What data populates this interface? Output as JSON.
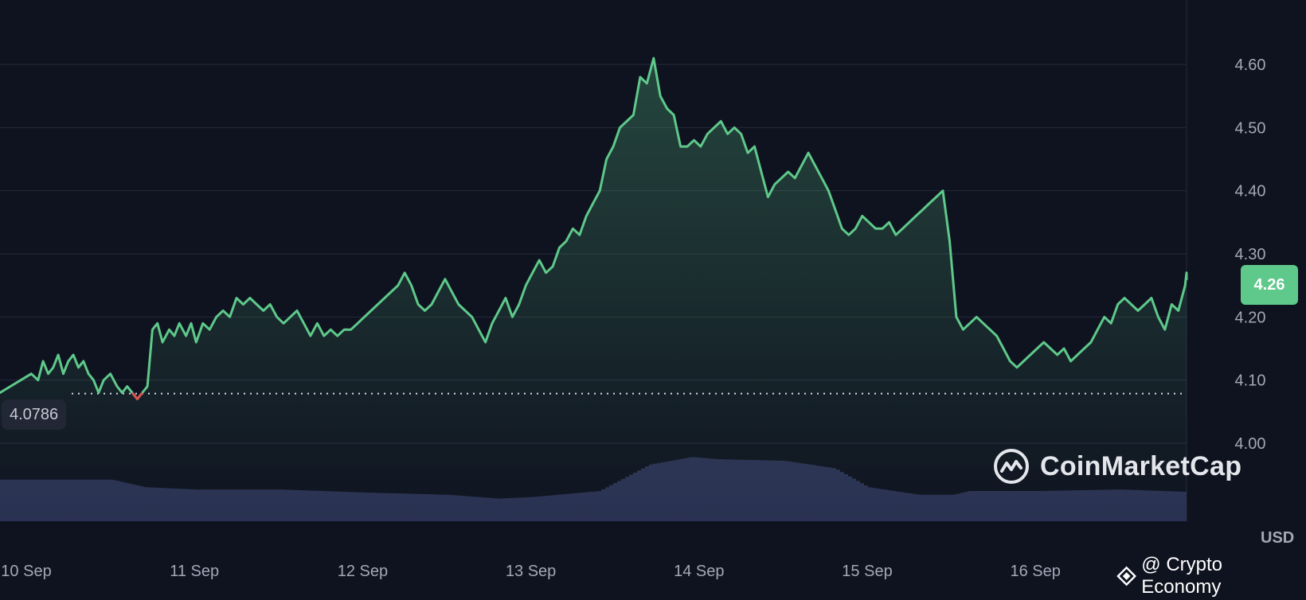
{
  "chart_data": {
    "type": "area",
    "x_ticks": [
      "10 Sep",
      "11 Sep",
      "12 Sep",
      "13 Sep",
      "14 Sep",
      "15 Sep",
      "16 Sep"
    ],
    "y_ticks": [
      "4.00",
      "4.10",
      "4.20",
      "4.30",
      "4.40",
      "4.50",
      "4.60"
    ],
    "ylim": [
      4.0,
      4.66
    ],
    "xlim": [
      0,
      7.0
    ],
    "currency": "USD",
    "reference_value": "4.0786",
    "last_value": "4.26",
    "grid": true,
    "line_color": "#5ec98a",
    "below_reference_color": "#d9534f",
    "series": [
      {
        "values": [
          [
            0.0,
            4.08
          ],
          [
            0.03,
            4.11
          ],
          [
            0.07,
            4.1
          ],
          [
            0.1,
            4.13
          ],
          [
            0.13,
            4.11
          ],
          [
            0.16,
            4.12
          ],
          [
            0.19,
            4.14
          ],
          [
            0.22,
            4.11
          ],
          [
            0.25,
            4.13
          ],
          [
            0.28,
            4.14
          ],
          [
            0.31,
            4.12
          ],
          [
            0.34,
            4.13
          ],
          [
            0.37,
            4.11
          ],
          [
            0.4,
            4.1
          ],
          [
            0.43,
            4.08
          ],
          [
            0.46,
            4.1
          ],
          [
            0.5,
            4.11
          ],
          [
            0.54,
            4.09
          ],
          [
            0.57,
            4.08
          ],
          [
            0.6,
            4.09
          ],
          [
            0.63,
            4.08
          ],
          [
            0.66,
            4.07
          ],
          [
            0.69,
            4.08
          ],
          [
            0.72,
            4.09
          ],
          [
            0.75,
            4.18
          ],
          [
            0.78,
            4.19
          ],
          [
            0.81,
            4.16
          ],
          [
            0.85,
            4.18
          ],
          [
            0.88,
            4.17
          ],
          [
            0.91,
            4.19
          ],
          [
            0.95,
            4.17
          ],
          [
            0.98,
            4.19
          ],
          [
            1.01,
            4.16
          ],
          [
            1.05,
            4.19
          ],
          [
            1.09,
            4.18
          ],
          [
            1.13,
            4.2
          ],
          [
            1.17,
            4.21
          ],
          [
            1.21,
            4.2
          ],
          [
            1.25,
            4.23
          ],
          [
            1.29,
            4.22
          ],
          [
            1.33,
            4.23
          ],
          [
            1.37,
            4.22
          ],
          [
            1.41,
            4.21
          ],
          [
            1.45,
            4.22
          ],
          [
            1.49,
            4.2
          ],
          [
            1.53,
            4.19
          ],
          [
            1.57,
            4.2
          ],
          [
            1.61,
            4.21
          ],
          [
            1.65,
            4.19
          ],
          [
            1.69,
            4.17
          ],
          [
            1.73,
            4.19
          ],
          [
            1.77,
            4.17
          ],
          [
            1.81,
            4.18
          ],
          [
            1.85,
            4.17
          ],
          [
            1.89,
            4.18
          ],
          [
            1.93,
            4.18
          ],
          [
            1.97,
            4.19
          ],
          [
            2.01,
            4.2
          ],
          [
            2.05,
            4.21
          ],
          [
            2.09,
            4.22
          ],
          [
            2.13,
            4.23
          ],
          [
            2.17,
            4.24
          ],
          [
            2.21,
            4.25
          ],
          [
            2.25,
            4.27
          ],
          [
            2.29,
            4.25
          ],
          [
            2.33,
            4.22
          ],
          [
            2.37,
            4.21
          ],
          [
            2.41,
            4.22
          ],
          [
            2.45,
            4.24
          ],
          [
            2.49,
            4.26
          ],
          [
            2.53,
            4.24
          ],
          [
            2.57,
            4.22
          ],
          [
            2.61,
            4.21
          ],
          [
            2.65,
            4.2
          ],
          [
            2.69,
            4.18
          ],
          [
            2.73,
            4.16
          ],
          [
            2.77,
            4.19
          ],
          [
            2.81,
            4.21
          ],
          [
            2.85,
            4.23
          ],
          [
            2.89,
            4.2
          ],
          [
            2.93,
            4.22
          ],
          [
            2.97,
            4.25
          ],
          [
            3.01,
            4.27
          ],
          [
            3.05,
            4.29
          ],
          [
            3.09,
            4.27
          ],
          [
            3.13,
            4.28
          ],
          [
            3.17,
            4.31
          ],
          [
            3.21,
            4.32
          ],
          [
            3.25,
            4.34
          ],
          [
            3.29,
            4.33
          ],
          [
            3.33,
            4.36
          ],
          [
            3.37,
            4.38
          ],
          [
            3.41,
            4.4
          ],
          [
            3.45,
            4.45
          ],
          [
            3.49,
            4.47
          ],
          [
            3.53,
            4.5
          ],
          [
            3.57,
            4.51
          ],
          [
            3.61,
            4.52
          ],
          [
            3.65,
            4.58
          ],
          [
            3.69,
            4.57
          ],
          [
            3.73,
            4.61
          ],
          [
            3.77,
            4.55
          ],
          [
            3.81,
            4.53
          ],
          [
            3.85,
            4.52
          ],
          [
            3.89,
            4.47
          ],
          [
            3.93,
            4.47
          ],
          [
            3.97,
            4.48
          ],
          [
            4.01,
            4.47
          ],
          [
            4.05,
            4.49
          ],
          [
            4.09,
            4.5
          ],
          [
            4.13,
            4.51
          ],
          [
            4.17,
            4.49
          ],
          [
            4.21,
            4.5
          ],
          [
            4.25,
            4.49
          ],
          [
            4.29,
            4.46
          ],
          [
            4.33,
            4.47
          ],
          [
            4.37,
            4.43
          ],
          [
            4.41,
            4.39
          ],
          [
            4.45,
            4.41
          ],
          [
            4.49,
            4.42
          ],
          [
            4.53,
            4.43
          ],
          [
            4.57,
            4.42
          ],
          [
            4.61,
            4.44
          ],
          [
            4.65,
            4.46
          ],
          [
            4.69,
            4.44
          ],
          [
            4.73,
            4.42
          ],
          [
            4.77,
            4.4
          ],
          [
            4.81,
            4.37
          ],
          [
            4.85,
            4.34
          ],
          [
            4.89,
            4.33
          ],
          [
            4.93,
            4.34
          ],
          [
            4.97,
            4.36
          ],
          [
            5.01,
            4.35
          ],
          [
            5.05,
            4.34
          ],
          [
            5.09,
            4.34
          ],
          [
            5.13,
            4.35
          ],
          [
            5.17,
            4.33
          ],
          [
            5.21,
            4.34
          ],
          [
            5.25,
            4.35
          ],
          [
            5.29,
            4.36
          ],
          [
            5.33,
            4.37
          ],
          [
            5.37,
            4.38
          ],
          [
            5.41,
            4.39
          ],
          [
            5.45,
            4.4
          ],
          [
            5.49,
            4.32
          ],
          [
            5.53,
            4.2
          ],
          [
            5.57,
            4.18
          ],
          [
            5.61,
            4.19
          ],
          [
            5.65,
            4.2
          ],
          [
            5.69,
            4.19
          ],
          [
            5.73,
            4.18
          ],
          [
            5.77,
            4.17
          ],
          [
            5.81,
            4.15
          ],
          [
            5.85,
            4.13
          ],
          [
            5.89,
            4.12
          ],
          [
            5.93,
            4.13
          ],
          [
            5.97,
            4.14
          ],
          [
            6.01,
            4.15
          ],
          [
            6.05,
            4.16
          ],
          [
            6.09,
            4.15
          ],
          [
            6.13,
            4.14
          ],
          [
            6.17,
            4.15
          ],
          [
            6.21,
            4.13
          ],
          [
            6.25,
            4.14
          ],
          [
            6.29,
            4.15
          ],
          [
            6.33,
            4.16
          ],
          [
            6.37,
            4.18
          ],
          [
            6.41,
            4.2
          ],
          [
            6.45,
            4.19
          ],
          [
            6.49,
            4.22
          ],
          [
            6.53,
            4.23
          ],
          [
            6.57,
            4.22
          ],
          [
            6.61,
            4.21
          ],
          [
            6.65,
            4.22
          ],
          [
            6.69,
            4.23
          ],
          [
            6.73,
            4.2
          ],
          [
            6.77,
            4.18
          ],
          [
            6.81,
            4.22
          ],
          [
            6.85,
            4.21
          ],
          [
            6.89,
            4.25
          ],
          [
            6.93,
            4.27
          ],
          [
            6.97,
            4.26
          ],
          [
            7.0,
            4.26
          ]
        ]
      }
    ],
    "volume": [
      [
        0.0,
        0.55
      ],
      [
        0.5,
        0.55
      ],
      [
        0.7,
        0.45
      ],
      [
        1.0,
        0.42
      ],
      [
        1.5,
        0.42
      ],
      [
        2.0,
        0.38
      ],
      [
        2.5,
        0.35
      ],
      [
        2.8,
        0.3
      ],
      [
        3.0,
        0.32
      ],
      [
        3.4,
        0.4
      ],
      [
        3.7,
        0.75
      ],
      [
        3.95,
        0.85
      ],
      [
        4.1,
        0.82
      ],
      [
        4.5,
        0.8
      ],
      [
        4.8,
        0.7
      ],
      [
        5.0,
        0.45
      ],
      [
        5.3,
        0.35
      ],
      [
        5.5,
        0.35
      ],
      [
        5.6,
        0.4
      ],
      [
        6.0,
        0.4
      ],
      [
        6.5,
        0.42
      ],
      [
        7.0,
        0.38
      ]
    ]
  },
  "labels": {
    "brand": "CoinMarketCap",
    "credit": "@ Crypto Economy"
  }
}
